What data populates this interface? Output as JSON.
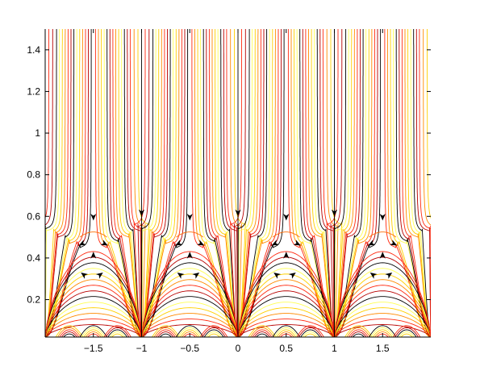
{
  "chart_data": {
    "type": "line",
    "title": "",
    "xlabel": "",
    "ylabel": "",
    "xlim": [
      -2,
      2
    ],
    "ylim": [
      0.02,
      1.5
    ],
    "grid": false,
    "x_ticks": [
      -1.5,
      -1,
      -0.5,
      0,
      0.5,
      1,
      1.5
    ],
    "x_tick_labels": [
      "−1.5",
      "−1",
      "−0.5",
      "0",
      "0.5",
      "1",
      "1.5"
    ],
    "y_ticks": [
      0.2,
      0.4,
      0.6,
      0.8,
      1,
      1.2,
      1.4
    ],
    "y_tick_labels": [
      "0.2",
      "0.4",
      "0.6",
      "0.8",
      "1",
      "1.2",
      "1.4"
    ],
    "period": 1,
    "fixed_points": [
      {
        "x": -1.5,
        "y": 0.5
      },
      {
        "x": -0.5,
        "y": 0.5
      },
      {
        "x": 0.5,
        "y": 0.5
      },
      {
        "x": 1.5,
        "y": 0.5
      }
    ],
    "separatrix_x": [
      -1,
      0,
      1
    ],
    "colormap": [
      "#000000",
      "#b80000",
      "#ff2a10",
      "#ff8a00",
      "#ffd000",
      "#ffff55"
    ],
    "series_description": "streamlines in the upper half-plane, periodic with period 1 in x, colored with a hot colormap"
  }
}
